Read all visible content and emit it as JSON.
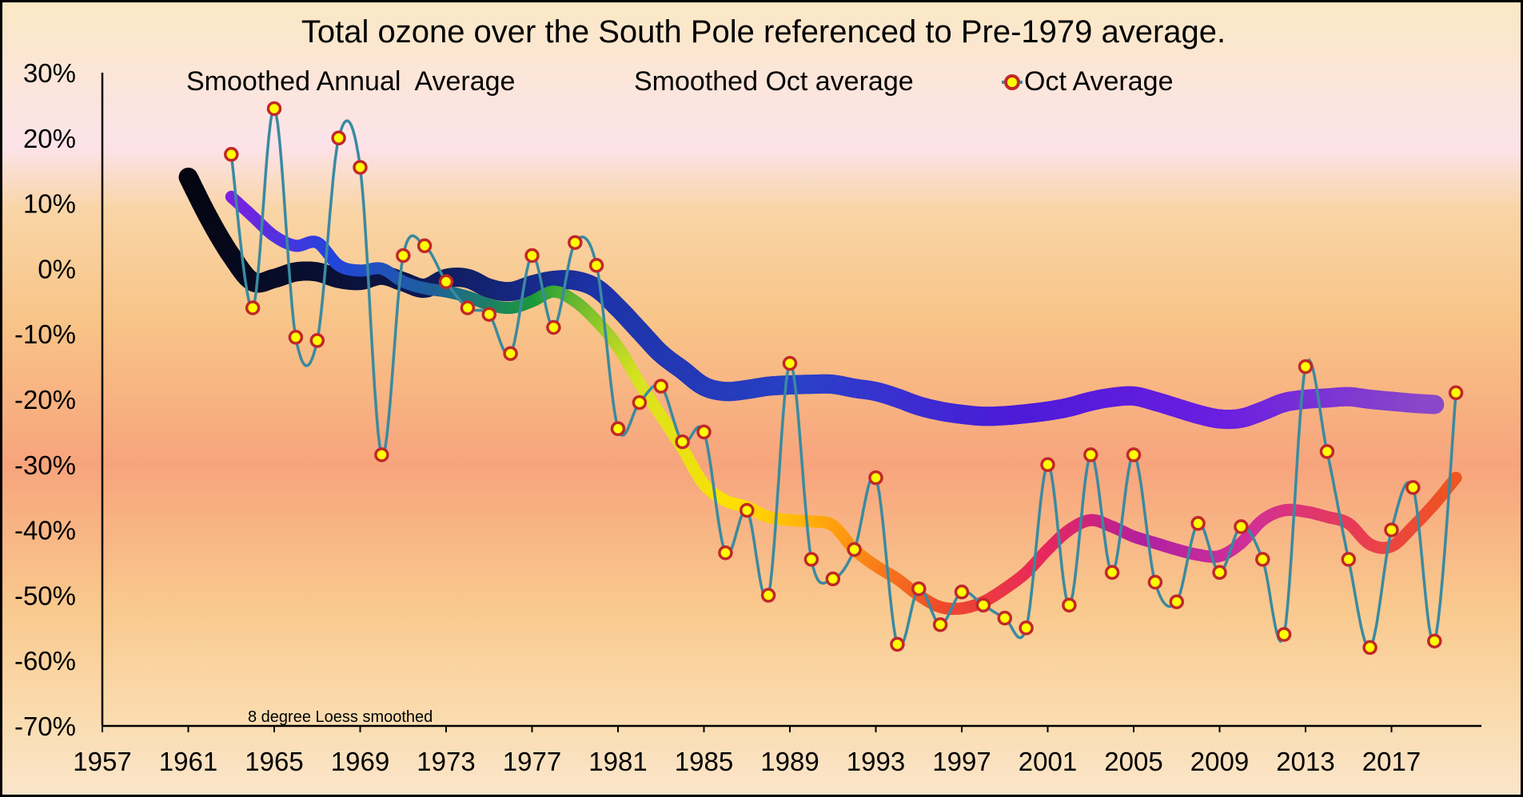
{
  "chart_data": {
    "type": "line",
    "title": "Total ozone over the South Pole referenced to Pre-1979 average.",
    "xlabel": "",
    "ylabel": "",
    "annotation": "8 degree Loess smoothed",
    "xlim": [
      1957,
      2021
    ],
    "ylim": [
      -70,
      30
    ],
    "x_ticks": [
      1957,
      1961,
      1965,
      1969,
      1973,
      1977,
      1981,
      1985,
      1989,
      1993,
      1997,
      2001,
      2005,
      2009,
      2013,
      2017
    ],
    "x_tick_labels": [
      "1957",
      "1961",
      "1965",
      "1969",
      "1973",
      "1977",
      "1981",
      "1985",
      "1989",
      "1993",
      "1997",
      "2001",
      "2005",
      "2009",
      "2013",
      "2017"
    ],
    "y_ticks": [
      30,
      20,
      10,
      0,
      -10,
      -20,
      -30,
      -40,
      -50,
      -60,
      -70
    ],
    "y_tick_labels": [
      "30%",
      "20%",
      "10%",
      "0%",
      "-10%",
      "-20%",
      "-30%",
      "-40%",
      "-50%",
      "-60%",
      "-70%"
    ],
    "grid": false,
    "legend_position": "top",
    "series": [
      {
        "name": "Smoothed Annual  Average",
        "style": "thick-gradient",
        "x": [
          1961,
          1962,
          1963,
          1964,
          1965,
          1966,
          1967,
          1968,
          1969,
          1970,
          1971,
          1972,
          1973,
          1974,
          1975,
          1976,
          1977,
          1978,
          1979,
          1980,
          1981,
          1982,
          1983,
          1984,
          1985,
          1986,
          1987,
          1988,
          1989,
          1990,
          1991,
          1992,
          1993,
          1994,
          1995,
          1996,
          1997,
          1998,
          1999,
          2000,
          2001,
          2002,
          2003,
          2004,
          2005,
          2006,
          2007,
          2008,
          2009,
          2010,
          2011,
          2012,
          2013,
          2014,
          2015,
          2016,
          2017,
          2018,
          2019
        ],
        "values": [
          14,
          7.5,
          2,
          -2,
          -1.5,
          -0.5,
          -0.5,
          -1.5,
          -1.8,
          -1,
          -2,
          -3,
          -1.5,
          -1.5,
          -3,
          -3.5,
          -2.5,
          -1.8,
          -1.8,
          -3,
          -6,
          -9.5,
          -13,
          -15.5,
          -18,
          -18.8,
          -18.5,
          -18,
          -17.8,
          -17.7,
          -17.7,
          -18.3,
          -18.8,
          -19.8,
          -21,
          -21.8,
          -22.3,
          -22.6,
          -22.5,
          -22.2,
          -21.8,
          -21.2,
          -20.3,
          -19.7,
          -19.5,
          -20.3,
          -21.3,
          -22.3,
          -23,
          -22.9,
          -21.8,
          -20.5,
          -20,
          -19.8,
          -19.6,
          -20,
          -20.3,
          -20.6,
          -20.8
        ]
      },
      {
        "name": "Smoothed Oct average",
        "style": "thick-gradient",
        "x": [
          1963,
          1964,
          1965,
          1966,
          1967,
          1968,
          1969,
          1970,
          1971,
          1972,
          1973,
          1974,
          1975,
          1976,
          1977,
          1978,
          1979,
          1980,
          1981,
          1982,
          1983,
          1984,
          1985,
          1986,
          1987,
          1988,
          1989,
          1990,
          1991,
          1992,
          1993,
          1994,
          1995,
          1996,
          1997,
          1998,
          1999,
          2000,
          2001,
          2002,
          2003,
          2004,
          2005,
          2006,
          2007,
          2008,
          2009,
          2010,
          2011,
          2012,
          2013,
          2014,
          2015,
          2016,
          2017,
          2018,
          2019,
          2020
        ],
        "values": [
          11,
          8,
          5,
          3.5,
          4,
          0.5,
          -0.3,
          0,
          -2,
          -3,
          -3.5,
          -4.3,
          -5.5,
          -6,
          -5,
          -3.5,
          -5,
          -8,
          -12,
          -17.5,
          -22.5,
          -27.5,
          -33,
          -35.5,
          -36.5,
          -38,
          -38.5,
          -38.7,
          -39.3,
          -43,
          -45.5,
          -47.5,
          -50,
          -51.8,
          -52,
          -51,
          -49,
          -46.5,
          -43,
          -40,
          -38.5,
          -39.5,
          -41,
          -42,
          -43,
          -43.8,
          -44,
          -42,
          -38.5,
          -37,
          -37.2,
          -38,
          -39,
          -42.2,
          -42.5,
          -39.5,
          -36,
          -32
        ]
      },
      {
        "name": "Oct Average",
        "style": "line-markers",
        "x": [
          1963,
          1964,
          1965,
          1966,
          1967,
          1968,
          1969,
          1970,
          1971,
          1972,
          1973,
          1974,
          1975,
          1976,
          1977,
          1978,
          1979,
          1980,
          1981,
          1982,
          1983,
          1984,
          1985,
          1986,
          1987,
          1988,
          1989,
          1990,
          1991,
          1992,
          1993,
          1994,
          1995,
          1996,
          1997,
          1998,
          1999,
          2000,
          2001,
          2002,
          2003,
          2004,
          2005,
          2006,
          2007,
          2008,
          2009,
          2010,
          2011,
          2012,
          2013,
          2014,
          2015,
          2016,
          2017,
          2018,
          2019,
          2020
        ],
        "values": [
          17.5,
          -6,
          24.5,
          -10.5,
          -11,
          20,
          15.5,
          -28.5,
          2,
          3.5,
          -2,
          -6,
          -7,
          -13,
          2,
          -9,
          4,
          0.5,
          -24.5,
          -20.5,
          -18,
          -26.5,
          -25,
          -43.5,
          -37,
          -50,
          -14.5,
          -44.5,
          -47.5,
          -43,
          -32,
          -57.5,
          -49,
          -54.5,
          -49.5,
          -51.5,
          -53.5,
          -55,
          -30,
          -51.5,
          -28.5,
          -46.5,
          -28.5,
          -48,
          -51,
          -39,
          -46.5,
          -39.5,
          -44.5,
          -56,
          -15,
          -28,
          -44.5,
          -58,
          -40,
          -33.5,
          -57,
          -19
        ]
      }
    ],
    "colors": {
      "annual_gradient": [
        "#050510",
        "#0b1545",
        "#1d33a8",
        "#2a40c8",
        "#4c1ad8",
        "#6a1ee0",
        "#8a48c8"
      ],
      "oct_smoothed_gradient": [
        "#7e1fe0",
        "#2244dd",
        "#1f5f9a",
        "#1a9a3a",
        "#d8e320",
        "#ffe000",
        "#ff9a10",
        "#ee4a2a",
        "#e8275c",
        "#b020a0",
        "#d03098",
        "#e83a58",
        "#ee5520"
      ],
      "oct_line": "#3a8aa0",
      "marker_fill": "#ffff00",
      "marker_edge": "#c02828"
    }
  }
}
